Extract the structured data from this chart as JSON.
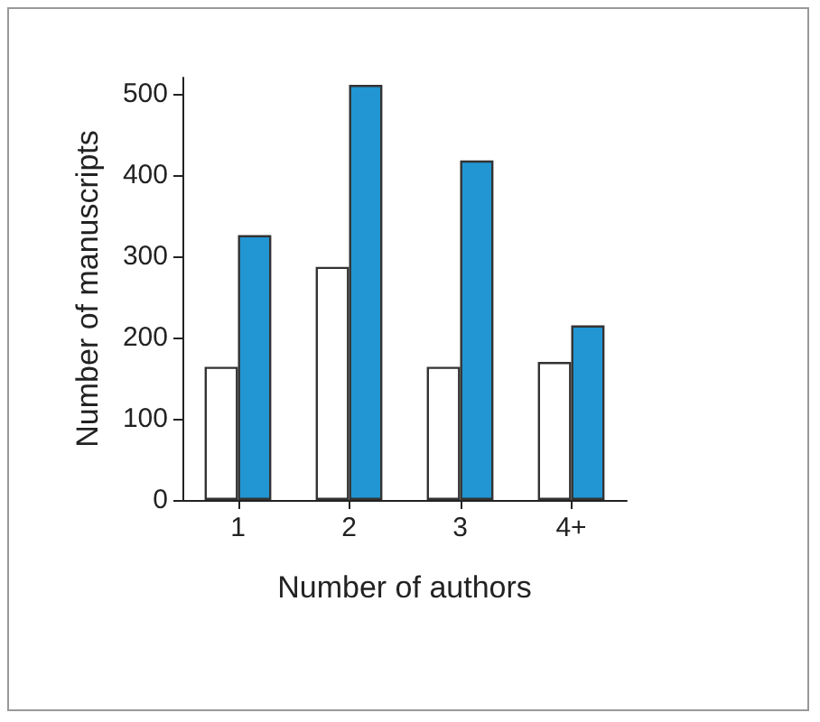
{
  "chart_data": {
    "type": "bar",
    "xlabel": "Number of authors",
    "ylabel": "Number of manuscripts",
    "categories": [
      "1",
      "2",
      "3",
      "4+"
    ],
    "series": [
      {
        "color": "#ffffff",
        "values": [
          164,
          287,
          164,
          170
        ]
      },
      {
        "color": "#2196d3",
        "values": [
          326,
          511,
          418,
          215
        ]
      }
    ],
    "ylim": [
      0,
      520
    ],
    "yticks": [
      0,
      100,
      200,
      300,
      400,
      500
    ],
    "grid": false
  }
}
